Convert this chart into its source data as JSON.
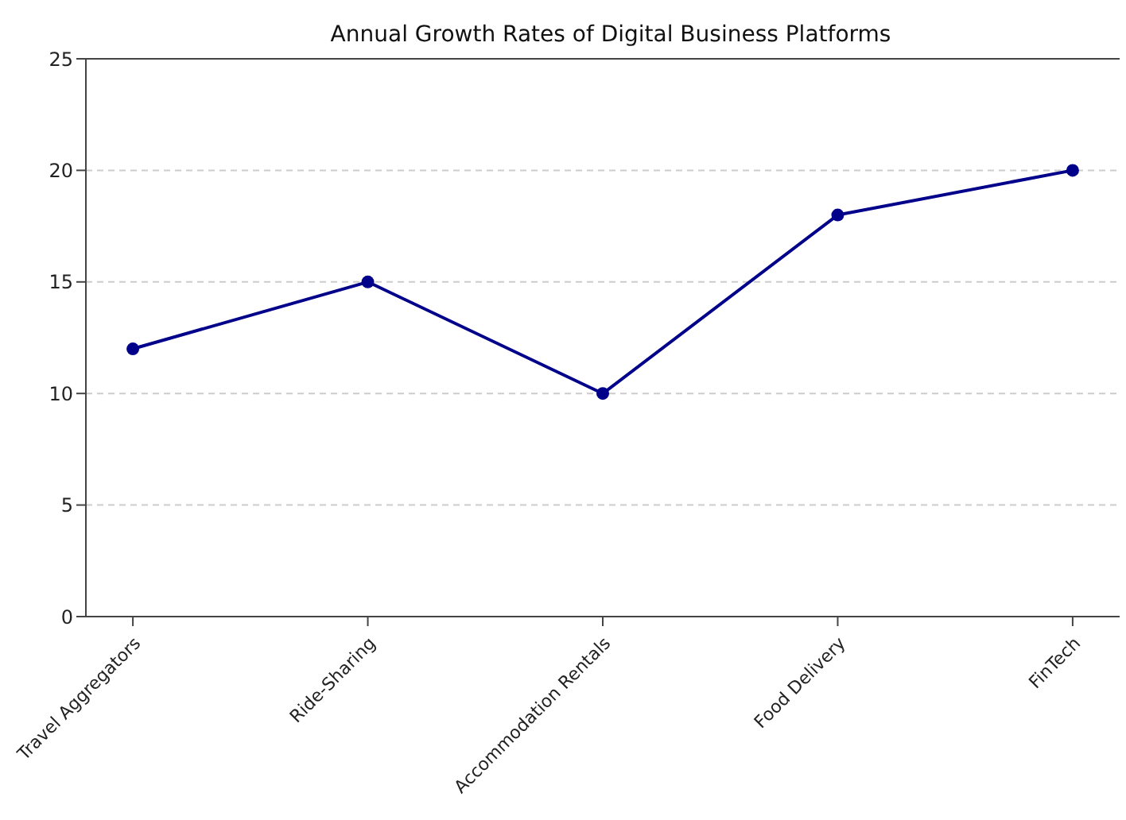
{
  "chart_data": {
    "type": "line",
    "title": "Annual Growth Rates of Digital Business Platforms",
    "categories": [
      "Travel Aggregators",
      "Ride-Sharing",
      "Accommodation Rentals",
      "Food Delivery",
      "FinTech"
    ],
    "series": [
      {
        "color": "#00008b",
        "values": [
          12,
          15,
          10,
          18,
          20
        ]
      }
    ],
    "ylim": [
      0,
      25
    ],
    "yticks": [
      0,
      5,
      10,
      15,
      20,
      25
    ],
    "grid": "y",
    "marker": "circle",
    "line_style": "solid"
  }
}
